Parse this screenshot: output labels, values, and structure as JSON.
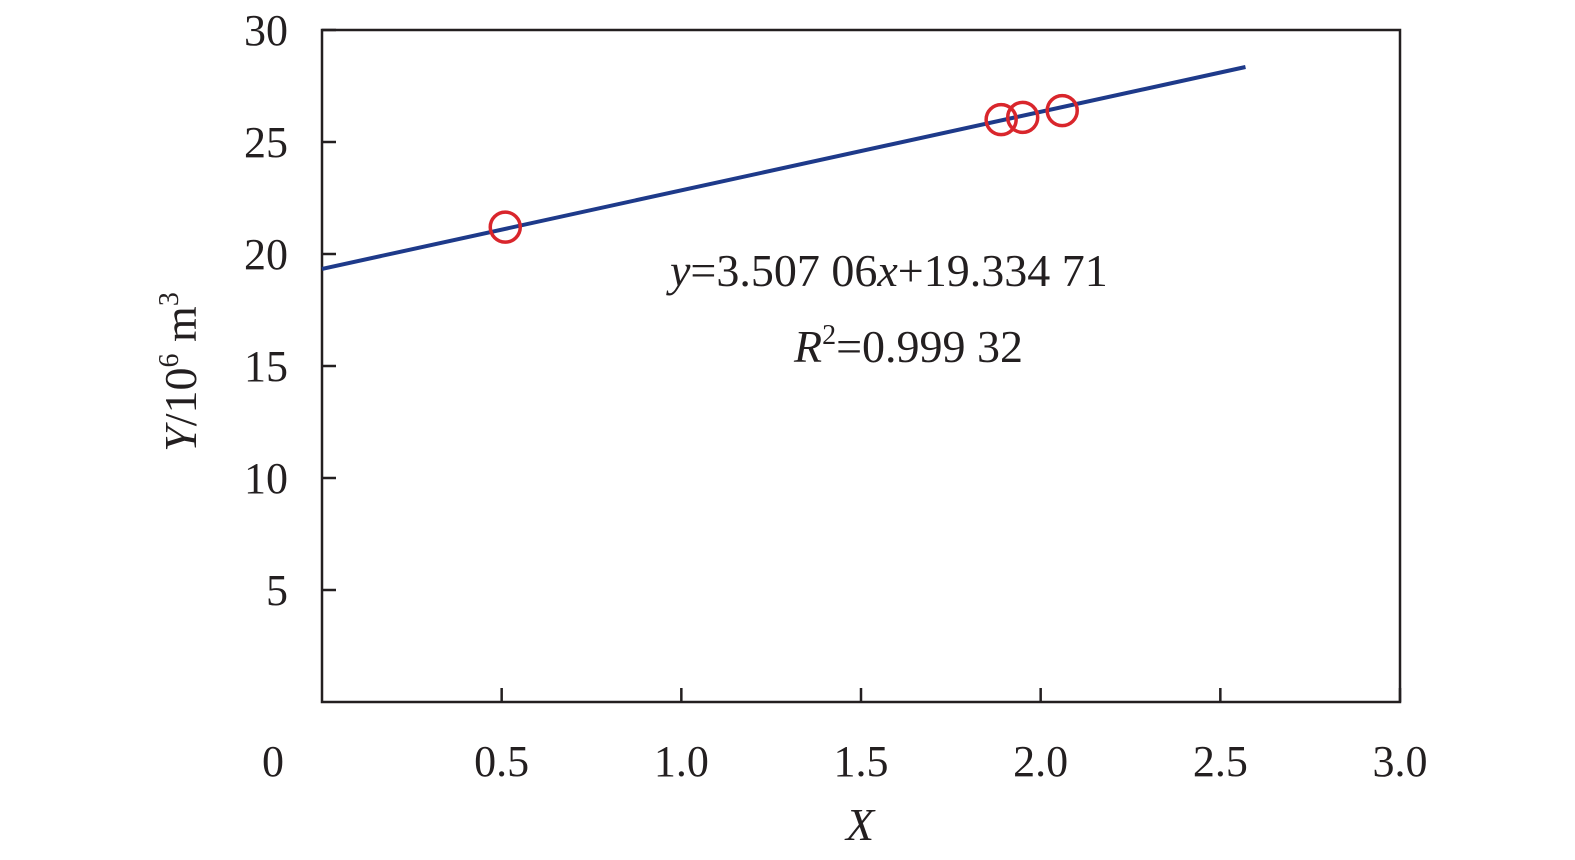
{
  "chart_data": {
    "type": "scatter",
    "xlabel": "X",
    "ylabel": {
      "italic": "Y",
      "base": "/10",
      "exp": "6",
      "unit_base": " m",
      "unit_exp": "3"
    },
    "xlim": [
      0,
      3.0
    ],
    "ylim": [
      0,
      30
    ],
    "xticks": [
      0.5,
      1.0,
      1.5,
      2.0,
      2.5,
      3.0
    ],
    "xtick_labels": [
      "0.5",
      "1.0",
      "1.5",
      "2.0",
      "2.5",
      "3.0"
    ],
    "yticks": [
      5,
      10,
      15,
      20,
      25,
      30
    ],
    "ytick_labels": [
      "5",
      "10",
      "15",
      "20",
      "25",
      "30"
    ],
    "origin_label": "0",
    "grid": false,
    "series": [
      {
        "kind": "points",
        "marker": "open-circle",
        "color": "#d9262c",
        "points": [
          {
            "x": 0.51,
            "y": 21.2
          },
          {
            "x": 1.89,
            "y": 26.0
          },
          {
            "x": 1.95,
            "y": 26.1
          },
          {
            "x": 2.06,
            "y": 26.4
          }
        ]
      },
      {
        "kind": "fit-line",
        "color": "#1e3a8a",
        "slope": 3.50706,
        "intercept": 19.33471,
        "x_range": [
          0,
          2.57
        ]
      }
    ],
    "annotation": {
      "equation": {
        "y_var": "y",
        "eq_part1": "=3.507 06",
        "x_var": "x",
        "eq_part2": "+19.334 71"
      },
      "r2": {
        "r_var": "R",
        "r_exp": "2",
        "r_value": "=0.999 32"
      }
    }
  }
}
